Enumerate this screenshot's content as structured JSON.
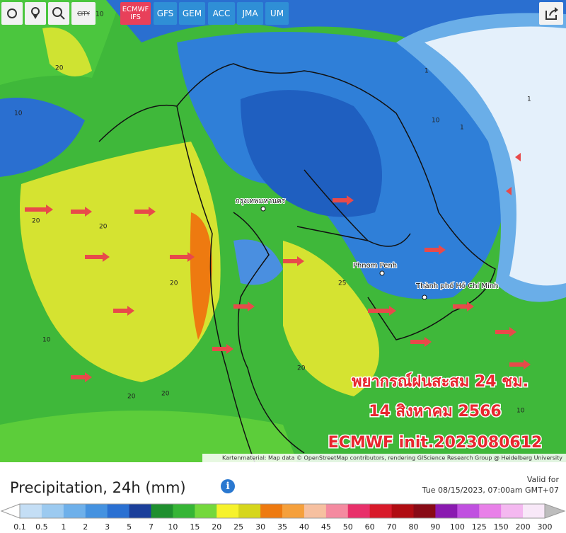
{
  "toolbar": {
    "city": "CITY",
    "models": [
      "ECMWF IFS",
      "GFS",
      "GEM",
      "ACC",
      "JMA",
      "UM"
    ],
    "active": 0
  },
  "map": {
    "places": [
      "Phnom Penh",
      "Thành phố Hồ Chí Minh",
      "กรุงเทพมหานคร"
    ],
    "contour_labels": [
      "20",
      "10",
      "20",
      "20",
      "10",
      "20",
      "1",
      "1",
      "10",
      "20",
      "25",
      "20",
      "10",
      "20",
      "10",
      "1"
    ],
    "overlay": [
      "พยากรณ์ฝนสะสม 24 ชม.",
      "14 สิงหาคม 2566",
      "ECMWF init.2023080612"
    ],
    "attribution": "Kartenmaterial: Map data © OpenStreetMap contributors, rendering GIScience Research Group @ Heidelberg University"
  },
  "legend": {
    "title": "Precipitation, 24h (mm)",
    "valid_label": "Valid for",
    "valid_time": "Tue 08/15/2023, 07:00am GMT+07",
    "ticks": [
      "0.1",
      "0.5",
      "1",
      "2",
      "3",
      "5",
      "7",
      "10",
      "15",
      "20",
      "25",
      "30",
      "35",
      "40",
      "45",
      "50",
      "60",
      "70",
      "80",
      "90",
      "100",
      "125",
      "150",
      "200",
      "300"
    ],
    "under_color": "#ffffff",
    "colors": [
      "#c4def5",
      "#9ccaf0",
      "#6eb0ea",
      "#4592e0",
      "#2a70d2",
      "#1b3f9a",
      "#1f8f2f",
      "#36b536",
      "#74d83c",
      "#f6f22c",
      "#d6d61c",
      "#ee7a10",
      "#f5a03c",
      "#f6c0a0",
      "#f48aa0",
      "#e8306a",
      "#d81a2a",
      "#b00c12",
      "#880a16",
      "#8a1ab0",
      "#c050e0",
      "#e880e8",
      "#f4b8f0",
      "#f8e8f8"
    ],
    "over_color": "#bdbdbd"
  }
}
